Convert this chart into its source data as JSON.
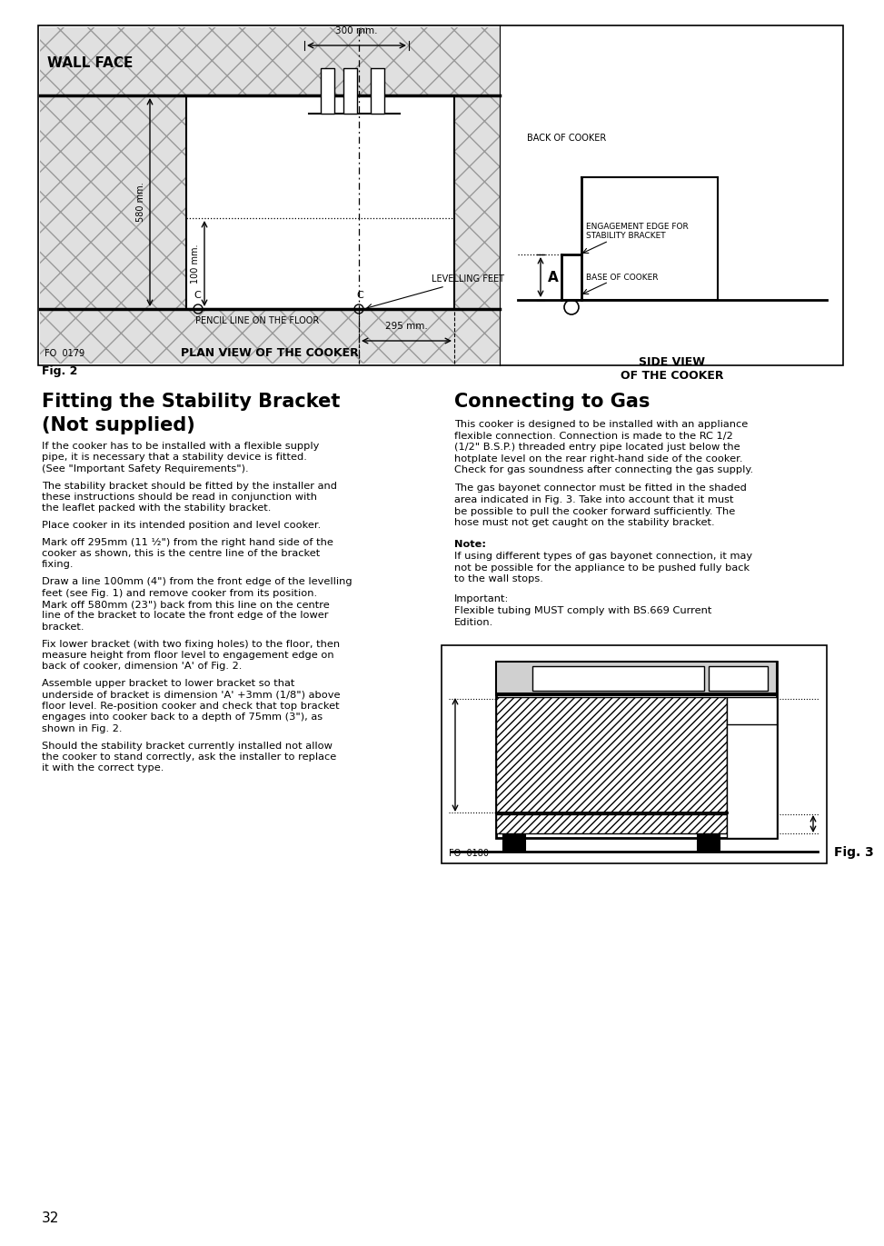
{
  "page_number": "32",
  "background_color": "#ffffff",
  "fig2_label": "Fig. 2",
  "left_section_title_line1": "Fitting the Stability Bracket",
  "left_section_title_line2": "(Not supplied)",
  "left_paragraphs": [
    "If the cooker has to be installed with a flexible supply\npipe, it is necessary that a stability device is fitted.\n(See \"Important Safety Requirements\").",
    "The stability bracket should be fitted by the installer and\nthese instructions should be read in conjunction with\nthe leaflet packed with the stability bracket.",
    "Place cooker in its intended position and level cooker.",
    "Mark off 295mm (11 ¹⁄₂\") from the right hand side of the\ncooker as shown, this is the centre line of the bracket\nfixing.",
    "Draw a line 100mm (4\") from the front edge of the levelling\nfeet (see Fig. 1) and remove cooker from its position.\nMark off 580mm (23\") back from this line on the centre\nline of the bracket to locate the front edge of the lower\nbracket.",
    "Fix lower bracket (with two fixing holes) to the floor, then\nmeasure height from floor level to engagement edge on\nback of cooker, dimension 'A' of Fig. 2.",
    "Assemble upper bracket to lower bracket so that\nunderside of bracket is dimension 'A' +3mm (1/8\") above\nfloor level. Re-position cooker and check that top bracket\nengages into cooker back to a depth of 75mm (3\"), as\nshown in Fig. 2.",
    "Should the stability bracket currently installed not allow\nthe cooker to stand correctly, ask the installer to replace\nit with the correct type."
  ],
  "right_section_title": "Connecting to Gas",
  "right_paragraphs": [
    "This cooker is designed to be installed with an appliance\nflexible connection. Connection is made to the RC 1/2\n(1/2\" B.S.P.) threaded entry pipe located just below the\nhotplate level on the rear right-hand side of the cooker.\nCheck for gas soundness after connecting the gas supply.",
    "The gas bayonet connector must be fitted in the shaded\narea indicated in Fig. 3. Take into account that it must\nbe possible to pull the cooker forward sufficiently. The\nhose must not get caught on the stability bracket."
  ],
  "note_label": "Note:",
  "note_text": "If using different types of gas bayonet connection, it may\nnot be possible for the appliance to be pushed fully back\nto the wall stops.",
  "important_label": "Important:",
  "important_text": "Flexible tubing MUST comply with BS.669 Current\nEdition.",
  "fig3_label": "Fig. 3",
  "fo_0179": "FO  0179",
  "fo_0180": "FO  0180"
}
